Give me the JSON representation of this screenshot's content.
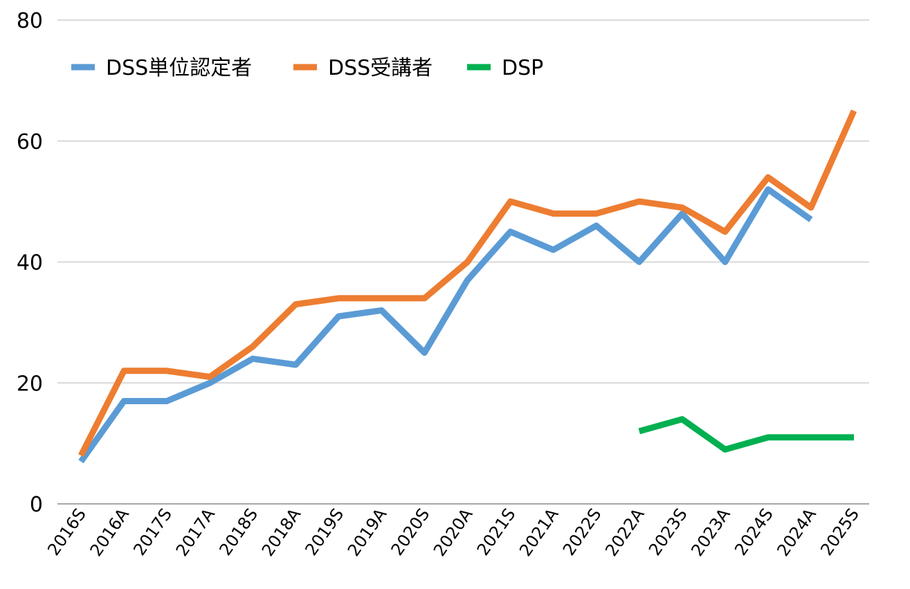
{
  "chart_data": {
    "type": "line",
    "categories": [
      "2016S",
      "2016A",
      "2017S",
      "2017A",
      "2018S",
      "2018A",
      "2019S",
      "2019A",
      "2020S",
      "2020A",
      "2021S",
      "2021A",
      "2022S",
      "2022A",
      "2023S",
      "2023A",
      "2024S",
      "2024A",
      "2025S"
    ],
    "series": [
      {
        "name": "DSS単位認定者",
        "color": "#5b9bd5",
        "values": [
          7,
          17,
          17,
          20,
          24,
          23,
          31,
          32,
          25,
          37,
          45,
          42,
          46,
          40,
          48,
          40,
          52,
          47,
          null
        ]
      },
      {
        "name": "DSS受講者",
        "color": "#ed7d31",
        "values": [
          8,
          22,
          22,
          21,
          26,
          33,
          34,
          34,
          34,
          40,
          50,
          48,
          48,
          50,
          49,
          45,
          54,
          49,
          65
        ]
      },
      {
        "name": "DSP",
        "color": "#00b050",
        "values": [
          null,
          null,
          null,
          null,
          null,
          null,
          null,
          null,
          null,
          null,
          null,
          null,
          null,
          12,
          14,
          9,
          11,
          11,
          11
        ]
      }
    ],
    "ylim": [
      0,
      80
    ],
    "yticks": [
      0,
      20,
      40,
      60,
      80
    ],
    "grid": true,
    "legend": "top-left",
    "title": "",
    "xlabel": "",
    "ylabel": ""
  }
}
